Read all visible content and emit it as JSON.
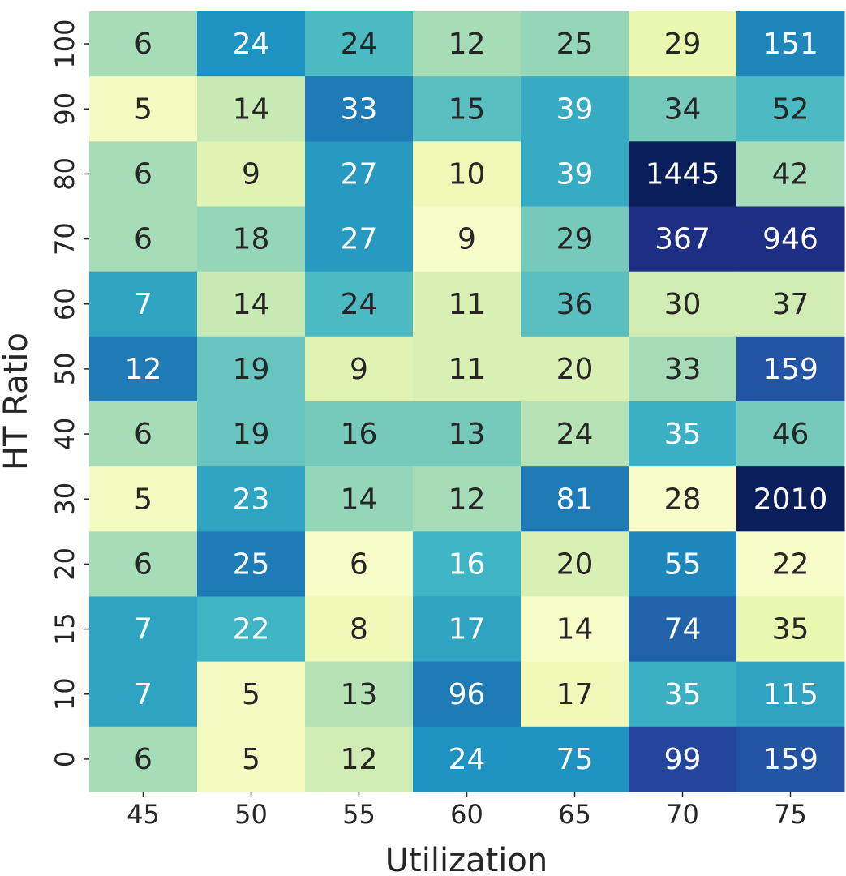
{
  "chart_data": {
    "type": "heatmap",
    "xlabel": "Utilization",
    "ylabel": "HT Ratio",
    "x_categories": [
      "45",
      "50",
      "55",
      "60",
      "65",
      "70",
      "75"
    ],
    "y_categories": [
      "100",
      "90",
      "80",
      "70",
      "60",
      "50",
      "40",
      "30",
      "20",
      "15",
      "10",
      "0"
    ],
    "values": [
      [
        6,
        24,
        24,
        12,
        25,
        29,
        151
      ],
      [
        5,
        14,
        33,
        15,
        39,
        34,
        52
      ],
      [
        6,
        9,
        27,
        10,
        39,
        1445,
        42
      ],
      [
        6,
        18,
        27,
        9,
        29,
        367,
        946
      ],
      [
        7,
        14,
        24,
        11,
        36,
        30,
        37
      ],
      [
        12,
        19,
        9,
        11,
        20,
        33,
        159
      ],
      [
        6,
        19,
        16,
        13,
        24,
        35,
        46
      ],
      [
        5,
        23,
        14,
        12,
        81,
        28,
        2010
      ],
      [
        6,
        25,
        6,
        16,
        20,
        55,
        22
      ],
      [
        7,
        22,
        8,
        17,
        14,
        74,
        35
      ],
      [
        7,
        5,
        13,
        96,
        17,
        35,
        115
      ],
      [
        6,
        5,
        12,
        24,
        75,
        99,
        159
      ]
    ],
    "colormap": "YlGnBu",
    "normalization": "per-column",
    "colorbar": false,
    "annotated": true
  }
}
